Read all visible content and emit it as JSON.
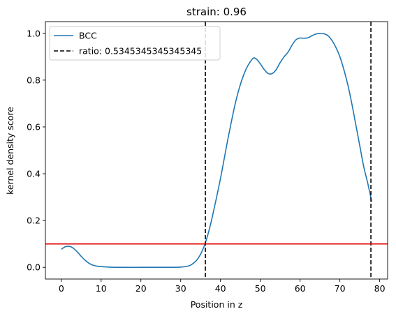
{
  "chart_data": {
    "type": "line",
    "title": "strain: 0.96",
    "xlabel": "Position in z",
    "ylabel": "kernel density score",
    "xlim": [
      -4,
      82
    ],
    "ylim": [
      -0.05,
      1.05
    ],
    "xticks": [
      0,
      10,
      20,
      30,
      40,
      50,
      60,
      70,
      80
    ],
    "yticks": [
      0.0,
      0.2,
      0.4,
      0.6,
      0.8,
      1.0
    ],
    "xtick_labels": [
      "0",
      "10",
      "20",
      "30",
      "40",
      "50",
      "60",
      "70",
      "80"
    ],
    "ytick_labels": [
      "0.0",
      "0.2",
      "0.4",
      "0.6",
      "0.8",
      "1.0"
    ],
    "grid": false,
    "legend_position": "upper-left",
    "series": [
      {
        "name": "BCC",
        "color": "#1f77b4",
        "x": [
          0,
          1,
          2,
          3,
          4,
          5,
          6,
          7,
          8,
          9,
          10,
          12,
          15,
          20,
          25,
          30,
          32,
          33,
          34,
          35,
          36,
          37,
          38,
          40,
          42,
          44,
          46,
          48,
          49,
          50,
          51,
          52,
          53,
          54,
          55,
          56,
          57,
          58,
          59,
          60,
          61,
          62,
          63,
          64,
          65,
          66,
          67,
          68,
          69,
          70,
          71,
          72,
          73,
          74,
          75,
          76,
          77,
          78
        ],
        "y": [
          0.077,
          0.088,
          0.09,
          0.082,
          0.066,
          0.047,
          0.03,
          0.017,
          0.009,
          0.005,
          0.003,
          0.001,
          0.0,
          0.0,
          0.0,
          0.001,
          0.006,
          0.015,
          0.03,
          0.056,
          0.095,
          0.15,
          0.22,
          0.38,
          0.56,
          0.72,
          0.83,
          0.89,
          0.89,
          0.87,
          0.845,
          0.828,
          0.828,
          0.845,
          0.875,
          0.9,
          0.92,
          0.95,
          0.973,
          0.98,
          0.979,
          0.981,
          0.99,
          0.997,
          1.0,
          0.998,
          0.99,
          0.97,
          0.94,
          0.9,
          0.845,
          0.78,
          0.7,
          0.61,
          0.52,
          0.43,
          0.36,
          0.28
        ]
      }
    ],
    "vlines": [
      {
        "name": "ratio: 0.5345345345345345",
        "x": 36.2,
        "color": "#000000",
        "style": "dashed"
      },
      {
        "x": 77.8,
        "color": "#000000",
        "style": "dashed"
      }
    ],
    "hline": {
      "y": 0.1,
      "color": "#e00000"
    },
    "legend": [
      {
        "label": "BCC",
        "style": "solid",
        "color": "#1f77b4"
      },
      {
        "label": "ratio: 0.5345345345345345",
        "style": "dashed",
        "color": "#000000"
      }
    ]
  }
}
